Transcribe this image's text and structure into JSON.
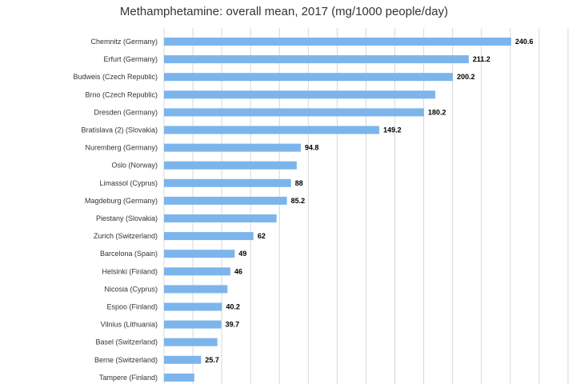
{
  "chart_data": {
    "type": "bar",
    "orientation": "horizontal",
    "title": "Methamphetamine: overall mean, 2017 (mg/1000 people/day)",
    "xlabel": "",
    "ylabel": "",
    "xlim": [
      0,
      280
    ],
    "grid": true,
    "legend": "none",
    "bar_color": "#7cb5ec",
    "grid_color": "#d8d8d8",
    "categories": [
      "Chemnitz (Germany)",
      "Erfurt (Germany)",
      "Budweis (Czech Republic)",
      "Brno (Czech Republic)",
      "Dresden (Germany)",
      "Bratislava (2) (Slovakia)",
      "Nuremberg (Germany)",
      "Oslo (Norway)",
      "Limassol (Cyprus)",
      "Magdeburg (Germany)",
      "Piestany (Slovakia)",
      "Zurich (Switzerland)",
      "Barcelona (Spain)",
      "Helsinki (Finland)",
      "Nicosia (Cyprus)",
      "Espoo (Finland)",
      "Vilnius (Lithuania)",
      "Basel (Switzerland)",
      "Berne (Switzerland)",
      "Tampere (Finland)"
    ],
    "values": [
      240.6,
      211.2,
      200.2,
      188,
      180.2,
      149.2,
      94.8,
      92,
      88,
      85.2,
      78,
      62,
      49,
      46,
      44,
      40.2,
      39.7,
      37,
      25.7,
      21
    ],
    "value_labels": [
      "240.6",
      "211.2",
      "200.2",
      "",
      "180.2",
      "149.2",
      "94.8",
      "",
      "88",
      "85.2",
      "",
      "62",
      "49",
      "46",
      "",
      "40.2",
      "39.7",
      "",
      "25.7",
      ""
    ]
  }
}
